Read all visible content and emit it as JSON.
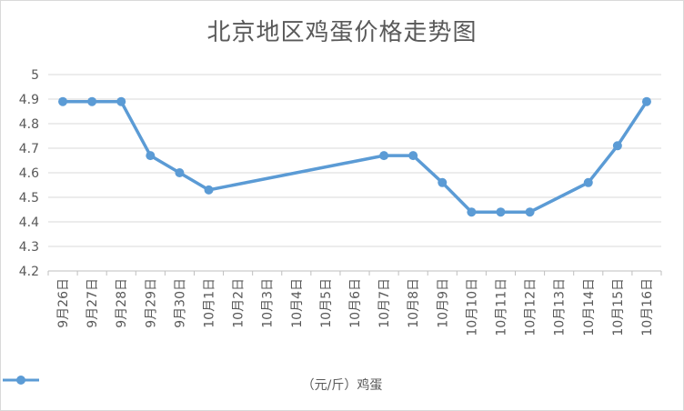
{
  "chart_data": {
    "type": "line",
    "title": "北京地区鸡蛋价格走势图",
    "categories": [
      "9月26日",
      "9月27日",
      "9月28日",
      "9月29日",
      "9月30日",
      "10月1日",
      "10月2日",
      "10月3日",
      "10月4日",
      "10月5日",
      "10月6日",
      "10月7日",
      "10月8日",
      "10月9日",
      "10月10日",
      "10月11日",
      "10月12日",
      "10月13日",
      "10月14日",
      "10月15日",
      "10月16日"
    ],
    "series": [
      {
        "name": "（元/斤）鸡蛋",
        "values": [
          4.89,
          4.89,
          4.89,
          4.67,
          4.6,
          4.53,
          null,
          null,
          null,
          null,
          null,
          4.67,
          4.67,
          4.56,
          4.44,
          4.44,
          4.44,
          null,
          4.56,
          4.71,
          4.89
        ]
      }
    ],
    "ylim": [
      4.2,
      5.0
    ],
    "yticks": [
      "4.2",
      "4.3",
      "4.4",
      "4.5",
      "4.6",
      "4.7",
      "4.8",
      "4.9",
      "5"
    ],
    "grid": true,
    "legend": "bottom",
    "colors": {
      "series": "#5b9bd5",
      "grid": "#d9d9d9",
      "axis": "#bfbfbf",
      "text": "#595959"
    }
  }
}
